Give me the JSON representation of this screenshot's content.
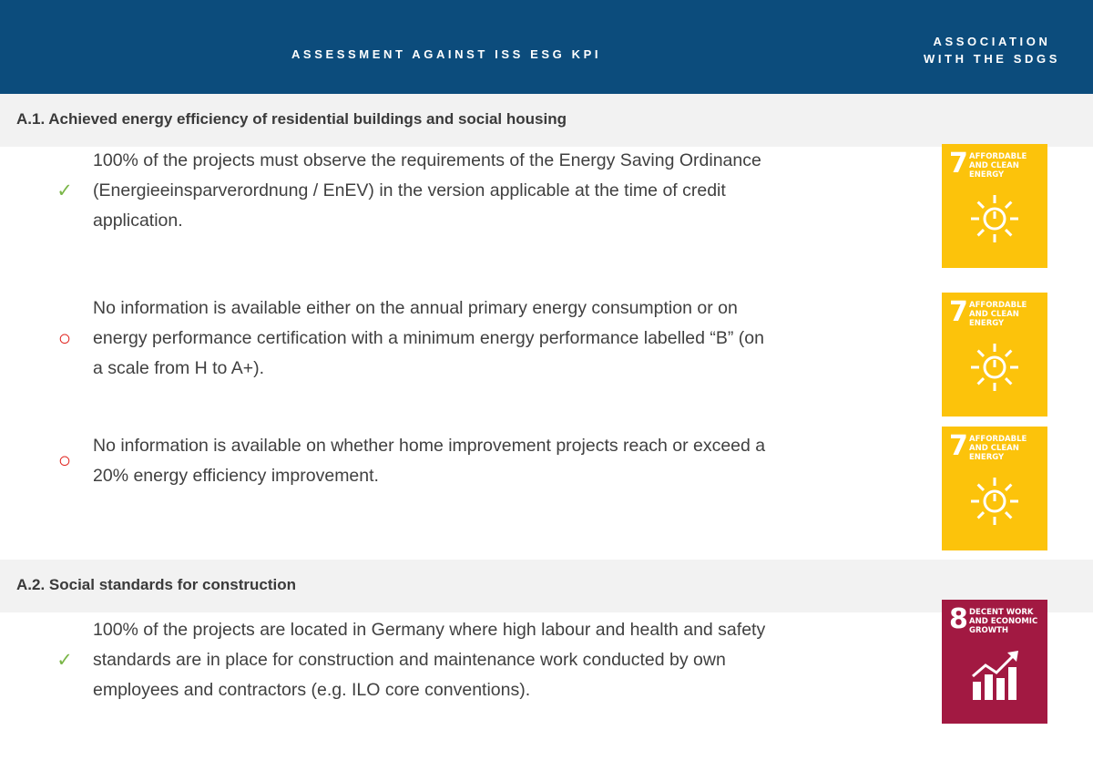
{
  "header": {
    "title": "ASSESSMENT AGAINST ISS ESG KPI",
    "sdg_title_lines": [
      "ASSOCIATION",
      "WITH THE SDGS"
    ]
  },
  "sections": [
    {
      "title": "A.1. Achieved energy efficiency of residential buildings and social housing",
      "items": [
        {
          "mark": "✓",
          "text": "100% of the projects must observe the requirements of the Energy Saving Ordinance (Energieeinsparverordnung / EnEV) in the version applicable at the time of credit application.",
          "sdg": {
            "number": "7",
            "label": "AFFORDABLE AND CLEAN ENERGY",
            "color": "#fcc30b"
          }
        },
        {
          "mark": "○",
          "text": "No information is available either on the annual primary energy consumption or on energy performance certification with a minimum energy performance labelled “B” (on a scale from H to A+).",
          "sdg": {
            "number": "7",
            "label": "AFFORDABLE AND CLEAN ENERGY",
            "color": "#fcc30b"
          }
        },
        {
          "mark": "○",
          "text": "No information is available on whether home improvement projects reach or exceed a 20% energy efficiency improvement.",
          "sdg": {
            "number": "7",
            "label": "AFFORDABLE AND CLEAN ENERGY",
            "color": "#fcc30b"
          }
        }
      ]
    },
    {
      "title": "A.2. Social standards for construction",
      "items": [
        {
          "mark": "✓",
          "text": "100% of the projects are located in Germany where high labour and health and safety standards are in place for construction and maintenance work conducted by own employees and contractors (e.g. ILO core conventions).",
          "sdg": {
            "number": "8",
            "label": "DECENT WORK AND ECONOMIC GROWTH",
            "color": "#a21942"
          }
        }
      ]
    }
  ]
}
